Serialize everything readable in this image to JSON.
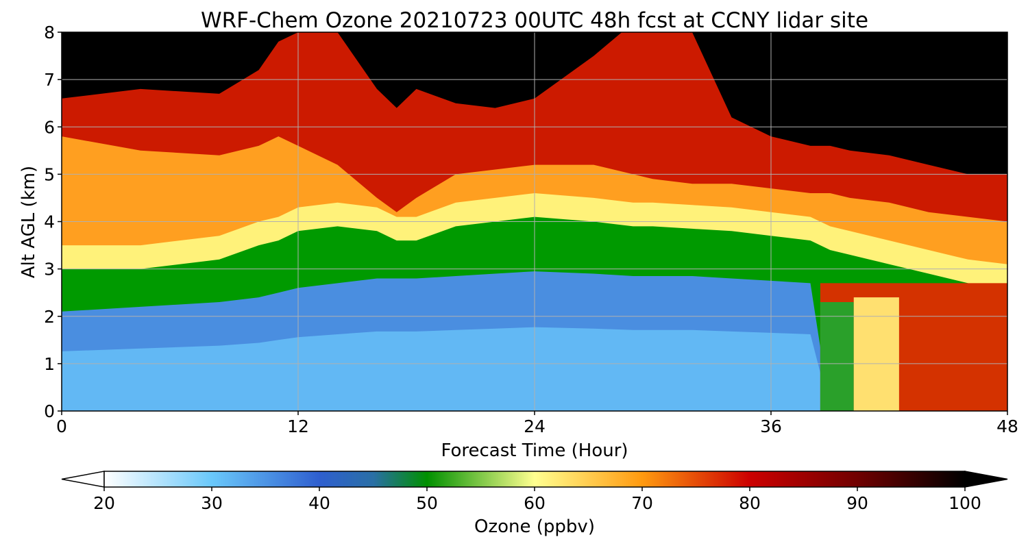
{
  "chart_data": {
    "type": "heatmap",
    "title": "WRF-Chem Ozone  20210723 00UTC 48h fcst at CCNY lidar site",
    "xlabel": "Forecast Time (Hour)",
    "ylabel": "Alt AGL (km)",
    "xlim": [
      0,
      48
    ],
    "ylim": [
      0,
      8
    ],
    "x_ticks": [
      0,
      12,
      24,
      36,
      48
    ],
    "y_ticks": [
      0,
      1,
      2,
      3,
      4,
      5,
      6,
      7,
      8
    ],
    "grid": true,
    "colorbar": {
      "label": "Ozone  (ppbv)",
      "orientation": "horizontal",
      "placement": "bottom",
      "range": [
        20,
        100
      ],
      "ticks": [
        20,
        30,
        40,
        50,
        60,
        70,
        80,
        90,
        100
      ],
      "extend": "both",
      "stops": [
        {
          "value": 20,
          "color": "#ffffff"
        },
        {
          "value": 30,
          "color": "#6ac8fa"
        },
        {
          "value": 40,
          "color": "#2f5fcf"
        },
        {
          "value": 45,
          "color": "#2a6fa6"
        },
        {
          "value": 50,
          "color": "#009000"
        },
        {
          "value": 60,
          "color": "#ffff90"
        },
        {
          "value": 70,
          "color": "#ff9a10"
        },
        {
          "value": 80,
          "color": "#cc0000"
        },
        {
          "value": 90,
          "color": "#700000"
        },
        {
          "value": 100,
          "color": "#000000"
        }
      ],
      "under_color": "#ffffff",
      "over_color": "#000000"
    },
    "approx_levels": {
      "description_note": "",
      "x_hours": [
        0,
        4,
        8,
        10,
        11,
        12,
        14,
        16,
        17,
        18,
        20,
        22,
        24,
        27,
        29,
        30,
        32,
        34,
        36,
        38,
        39,
        40,
        42,
        44,
        46,
        48
      ],
      "altitudes_km": {
        "blue_green_boundary": [
          2.1,
          2.2,
          2.3,
          2.4,
          2.5,
          2.6,
          2.7,
          2.8,
          2.8,
          2.8,
          2.85,
          2.9,
          2.95,
          2.9,
          2.85,
          2.85,
          2.85,
          2.8,
          2.75,
          2.7,
          0,
          0,
          0,
          0,
          0,
          0
        ],
        "green_top": [
          3.0,
          3.0,
          3.2,
          3.5,
          3.6,
          3.8,
          3.9,
          3.8,
          3.6,
          3.6,
          3.9,
          4.0,
          4.1,
          4.0,
          3.9,
          3.9,
          3.85,
          3.8,
          3.7,
          3.6,
          3.4,
          3.3,
          3.1,
          2.9,
          2.7,
          2.6
        ],
        "red_base": [
          5.8,
          5.5,
          5.4,
          5.6,
          5.8,
          5.6,
          5.2,
          4.5,
          4.2,
          4.5,
          5.0,
          5.1,
          5.2,
          5.2,
          5.0,
          4.9,
          4.8,
          4.8,
          4.7,
          4.6,
          4.6,
          4.5,
          4.4,
          4.2,
          4.1,
          4.0
        ],
        "black_base": [
          6.6,
          6.8,
          6.7,
          7.2,
          7.8,
          8.0,
          8.0,
          6.8,
          6.4,
          6.8,
          6.5,
          6.4,
          6.6,
          7.5,
          8.2,
          8.2,
          8.0,
          6.2,
          5.8,
          5.6,
          5.6,
          5.5,
          5.4,
          5.2,
          5.0,
          5.0
        ]
      }
    }
  }
}
